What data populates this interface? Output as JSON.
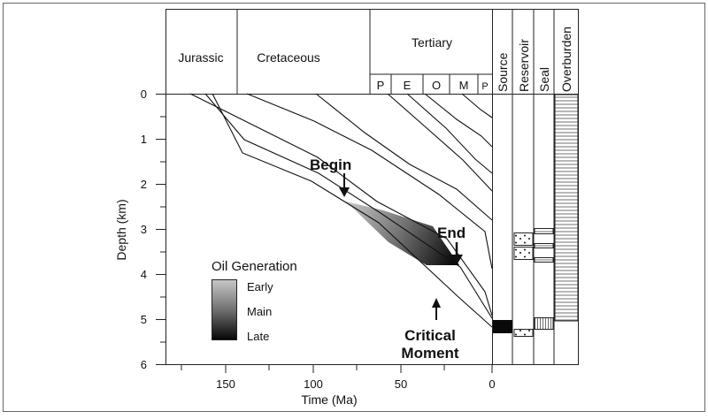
{
  "periods": {
    "jurassic": "Jurassic",
    "cretaceous": "Cretaceous",
    "tertiary": "Tertiary",
    "epochs": [
      "P",
      "E",
      "O",
      "M",
      "P"
    ]
  },
  "columns": [
    "Source",
    "Reservoir",
    "Seal",
    "Overburden"
  ],
  "axes": {
    "xlabel": "Time (Ma)",
    "ylabel": "Depth (km)",
    "xticks": [
      "150",
      "100",
      "50",
      "0"
    ],
    "yticks": [
      "0",
      "1",
      "2",
      "3",
      "4",
      "5",
      "6"
    ]
  },
  "legend": {
    "title": "Oil Generation",
    "items": [
      "Early",
      "Main",
      "Late"
    ]
  },
  "annotations": {
    "begin": "Begin",
    "end": "End",
    "critical_line1": "Critical",
    "critical_line2": "Moment"
  },
  "colors": {
    "early": "#c4c4c4",
    "main": "#7a7a7a",
    "late": "#0a0a0a"
  }
}
